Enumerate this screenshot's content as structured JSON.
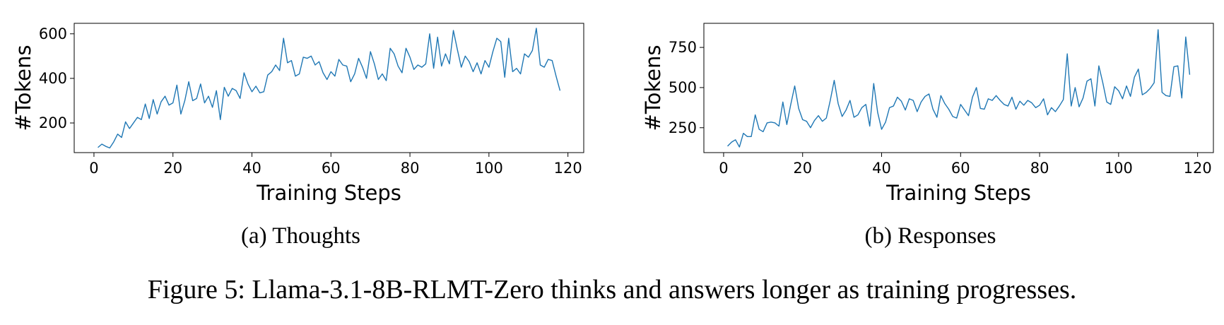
{
  "chart_data": [
    {
      "type": "line",
      "caption": "(a) Thoughts",
      "xlabel": "Training Steps",
      "ylabel": "#Tokens",
      "xlim": [
        -5,
        124
      ],
      "ylim": [
        67,
        647
      ],
      "xticks": [
        0,
        20,
        40,
        60,
        80,
        100,
        120
      ],
      "yticks": [
        200,
        400,
        600
      ],
      "grid": false,
      "x": [
        1,
        2,
        3,
        4,
        5,
        6,
        7,
        8,
        9,
        10,
        11,
        12,
        13,
        14,
        15,
        16,
        17,
        18,
        19,
        20,
        21,
        22,
        23,
        24,
        25,
        26,
        27,
        28,
        29,
        30,
        31,
        32,
        33,
        34,
        35,
        36,
        37,
        38,
        39,
        40,
        41,
        42,
        43,
        44,
        45,
        46,
        47,
        48,
        49,
        50,
        51,
        52,
        53,
        54,
        55,
        56,
        57,
        58,
        59,
        60,
        61,
        62,
        63,
        64,
        65,
        66,
        67,
        68,
        69,
        70,
        71,
        72,
        73,
        74,
        75,
        76,
        77,
        78,
        79,
        80,
        81,
        82,
        83,
        84,
        85,
        86,
        87,
        88,
        89,
        90,
        91,
        92,
        93,
        94,
        95,
        96,
        97,
        98,
        99,
        100,
        101,
        102,
        103,
        104,
        105,
        106,
        107,
        108,
        109,
        110,
        111,
        112,
        113,
        114,
        115,
        116,
        117,
        118
      ],
      "series": [
        {
          "color": "#1f77b4",
          "values": [
            90,
            105,
            95,
            88,
            115,
            150,
            135,
            205,
            175,
            200,
            225,
            215,
            285,
            220,
            305,
            240,
            295,
            320,
            280,
            290,
            370,
            240,
            300,
            385,
            300,
            310,
            375,
            290,
            320,
            270,
            345,
            215,
            360,
            320,
            355,
            345,
            310,
            425,
            375,
            340,
            365,
            335,
            340,
            415,
            430,
            460,
            435,
            580,
            470,
            480,
            410,
            420,
            495,
            490,
            500,
            460,
            475,
            425,
            395,
            430,
            410,
            485,
            460,
            455,
            385,
            420,
            490,
            450,
            400,
            520,
            465,
            395,
            420,
            390,
            535,
            510,
            455,
            425,
            535,
            495,
            440,
            460,
            450,
            465,
            600,
            445,
            585,
            455,
            510,
            465,
            615,
            530,
            450,
            500,
            475,
            430,
            470,
            420,
            480,
            450,
            520,
            580,
            565,
            405,
            580,
            430,
            445,
            420,
            510,
            495,
            525,
            625,
            460,
            450,
            485,
            480,
            410,
            345
          ]
        }
      ]
    },
    {
      "type": "line",
      "caption": "(b) Responses",
      "xlabel": "Training Steps",
      "ylabel": "#Tokens",
      "xlim": [
        -5,
        124
      ],
      "ylim": [
        95,
        900
      ],
      "xticks": [
        0,
        20,
        40,
        60,
        80,
        100,
        120
      ],
      "yticks": [
        250,
        500,
        750
      ],
      "grid": false,
      "x": [
        1,
        2,
        3,
        4,
        5,
        6,
        7,
        8,
        9,
        10,
        11,
        12,
        13,
        14,
        15,
        16,
        17,
        18,
        19,
        20,
        21,
        22,
        23,
        24,
        25,
        26,
        27,
        28,
        29,
        30,
        31,
        32,
        33,
        34,
        35,
        36,
        37,
        38,
        39,
        40,
        41,
        42,
        43,
        44,
        45,
        46,
        47,
        48,
        49,
        50,
        51,
        52,
        53,
        54,
        55,
        56,
        57,
        58,
        59,
        60,
        61,
        62,
        63,
        64,
        65,
        66,
        67,
        68,
        69,
        70,
        71,
        72,
        73,
        74,
        75,
        76,
        77,
        78,
        79,
        80,
        81,
        82,
        83,
        84,
        85,
        86,
        87,
        88,
        89,
        90,
        91,
        92,
        93,
        94,
        95,
        96,
        97,
        98,
        99,
        100,
        101,
        102,
        103,
        104,
        105,
        106,
        107,
        108,
        109,
        110,
        111,
        112,
        113,
        114,
        115,
        116,
        117,
        118
      ],
      "series": [
        {
          "color": "#1f77b4",
          "values": [
            135,
            160,
            175,
            130,
            215,
            195,
            195,
            330,
            240,
            225,
            280,
            285,
            280,
            260,
            410,
            270,
            395,
            510,
            370,
            300,
            290,
            250,
            295,
            325,
            290,
            310,
            420,
            545,
            400,
            320,
            360,
            420,
            315,
            330,
            375,
            395,
            260,
            525,
            345,
            240,
            285,
            375,
            385,
            440,
            415,
            360,
            430,
            420,
            350,
            410,
            445,
            460,
            365,
            315,
            450,
            400,
            365,
            320,
            310,
            395,
            360,
            325,
            440,
            500,
            370,
            365,
            430,
            420,
            450,
            420,
            395,
            385,
            440,
            365,
            415,
            390,
            420,
            405,
            375,
            390,
            430,
            330,
            375,
            350,
            385,
            425,
            710,
            385,
            500,
            380,
            435,
            540,
            555,
            385,
            635,
            530,
            410,
            395,
            505,
            480,
            430,
            510,
            445,
            565,
            615,
            455,
            470,
            495,
            530,
            860,
            470,
            450,
            445,
            630,
            635,
            435,
            815,
            580
          ]
        }
      ]
    }
  ],
  "figure_caption": "Figure 5: Llama-3.1-8B-RLMT-Zero thinks and answers longer as training progresses."
}
